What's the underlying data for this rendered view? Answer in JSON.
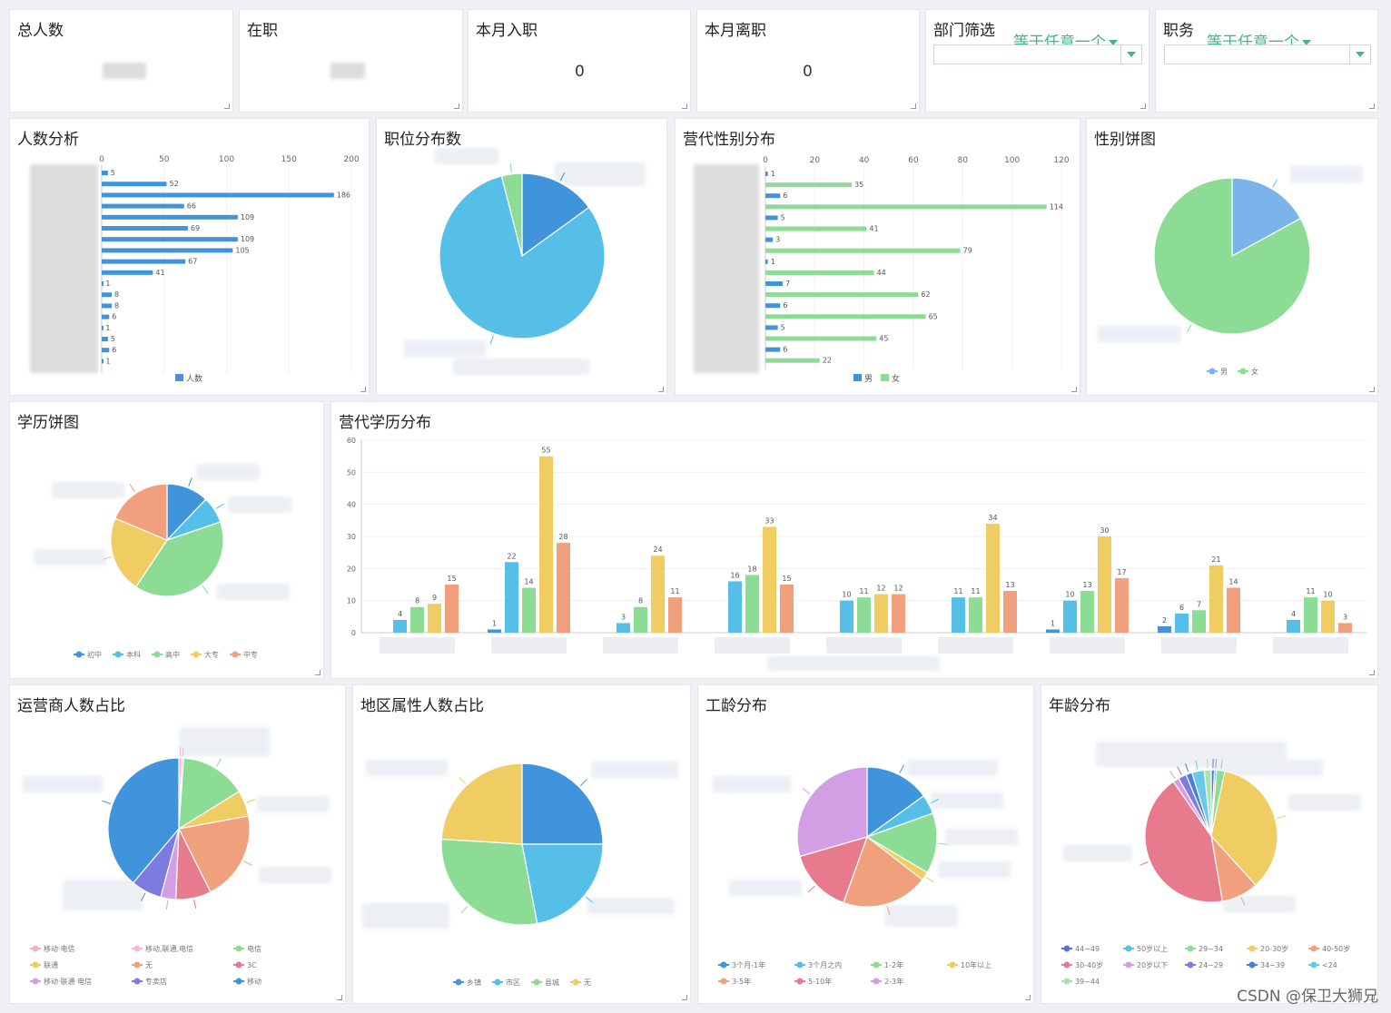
{
  "kpis": [
    {
      "title": "总人数",
      "value": ""
    },
    {
      "title": "在职",
      "value": ""
    },
    {
      "title": "本月入职",
      "value": "0"
    },
    {
      "title": "本月离职",
      "value": "0"
    }
  ],
  "filters": [
    {
      "label": "部门筛选",
      "operator": "等于任意一个",
      "value": ""
    },
    {
      "label": "职务",
      "operator": "等于任意一个",
      "value": ""
    }
  ],
  "panels": {
    "headcount": "人数分析",
    "position": "职位分布数",
    "gen_gender": "营代性别分布",
    "gender_pie": "性别饼图",
    "edu_pie": "学历饼图",
    "gen_edu": "营代学历分布",
    "carrier": "运营商人数占比",
    "region": "地区属性人数占比",
    "tenure": "工龄分布",
    "age": "年龄分布"
  },
  "colors": {
    "blue": "#3f94dc",
    "cyan": "#56bfe8",
    "green": "#8ddc96",
    "yellow": "#efcd62",
    "orange": "#f0a07d",
    "pink": "#e87a8e",
    "purple": "#d49ee5",
    "violet": "#7c7ce0"
  },
  "watermark": "CSDN @保卫大狮兄",
  "chart_data": [
    {
      "id": "headcount",
      "type": "bar",
      "orientation": "horizontal",
      "xlim": [
        0,
        200
      ],
      "xticks": [
        0,
        50,
        100,
        150,
        200
      ],
      "series": [
        {
          "name": "人数",
          "values": [
            5,
            52,
            186,
            66,
            109,
            69,
            109,
            105,
            67,
            41,
            1,
            8,
            8,
            6,
            1,
            5,
            6,
            1
          ]
        }
      ]
    },
    {
      "id": "position",
      "type": "pie",
      "values": [
        15,
        81,
        4
      ]
    },
    {
      "id": "gen_gender",
      "type": "bar",
      "orientation": "horizontal",
      "xlim": [
        0,
        120
      ],
      "xticks": [
        0,
        20,
        40,
        60,
        80,
        100,
        120
      ],
      "series": [
        {
          "name": "男",
          "values": [
            1,
            6,
            5,
            3,
            1,
            7,
            6,
            5,
            6
          ]
        },
        {
          "name": "女",
          "values": [
            35,
            114,
            41,
            79,
            44,
            62,
            65,
            45,
            22
          ]
        }
      ]
    },
    {
      "id": "gender_pie",
      "type": "pie",
      "series_names": [
        "男",
        "女"
      ],
      "values": [
        17,
        83
      ]
    },
    {
      "id": "edu_pie",
      "type": "pie",
      "series_names": [
        "初中",
        "本科",
        "高中",
        "大专",
        "中专"
      ],
      "values": [
        11,
        7,
        36,
        20,
        17
      ]
    },
    {
      "id": "gen_edu",
      "type": "bar",
      "ylim": [
        0,
        60
      ],
      "yticks": [
        0,
        10,
        20,
        30,
        40,
        50,
        60
      ],
      "groups": [
        [
          null,
          4,
          8,
          9,
          15
        ],
        [
          1,
          22,
          14,
          55,
          28
        ],
        [
          null,
          3,
          8,
          24,
          11
        ],
        [
          null,
          16,
          18,
          33,
          15
        ],
        [
          null,
          10,
          11,
          12,
          12
        ],
        [
          null,
          11,
          11,
          34,
          13
        ],
        [
          1,
          10,
          13,
          30,
          17
        ],
        [
          2,
          6,
          7,
          21,
          14
        ],
        [
          null,
          4,
          11,
          10,
          3
        ]
      ]
    },
    {
      "id": "carrier",
      "type": "pie",
      "series_names": [
        "移动·电信",
        "移动,联通,电信",
        "电信",
        "联通",
        "无",
        "3C",
        "移动·联通·电信",
        "专卖店",
        "移动"
      ],
      "values": [
        0.6,
        0.4,
        14,
        5.5,
        19,
        7.5,
        3.2,
        6.5,
        36
      ]
    },
    {
      "id": "region",
      "type": "pie",
      "series_names": [
        "乡镇",
        "市区",
        "县城",
        "无"
      ],
      "values": [
        25,
        22,
        29,
        24
      ]
    },
    {
      "id": "tenure",
      "type": "pie",
      "series_names": [
        "3个月-1年",
        "3个月之内",
        "1-2年",
        "10年以上",
        "3-5年",
        "5-10年",
        "2-3年"
      ],
      "values": [
        15,
        4.5,
        14,
        2,
        20,
        15,
        29.5
      ]
    },
    {
      "id": "age",
      "type": "pie",
      "series_names": [
        "44~49",
        "50岁以上",
        "29~34",
        "20-30岁",
        "40-50岁",
        "30-40岁",
        "20岁以下",
        "24~29",
        "34~39",
        "<24",
        "39~44"
      ],
      "values": [
        0.8,
        0.5,
        2,
        35,
        9,
        43,
        1.5,
        2,
        1.5,
        3,
        1.7
      ]
    }
  ]
}
